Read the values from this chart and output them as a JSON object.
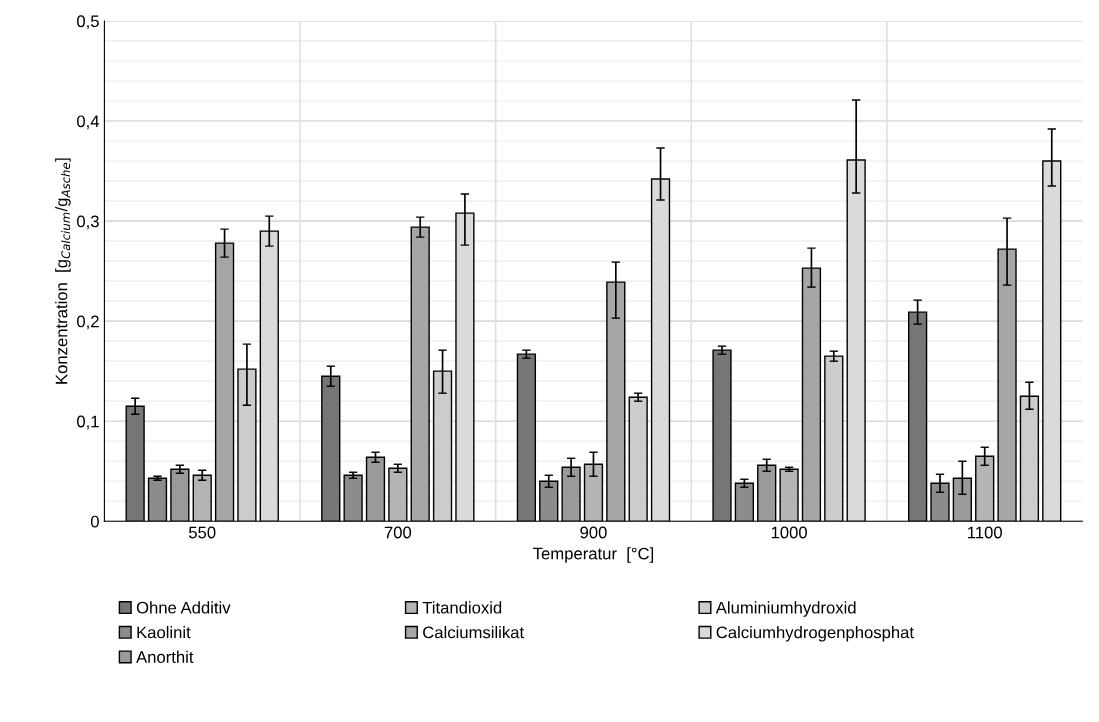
{
  "chart_data": {
    "type": "bar",
    "xlabel": "Temperatur  [°C]",
    "ylabel": "Konzentration  [g$_{Calcium}$/g$_{Asche}$]",
    "categories": [
      "550",
      "700",
      "900",
      "1000",
      "1100"
    ],
    "ylim": [
      0,
      0.5
    ],
    "yticks": [
      {
        "value": 0,
        "label": "0"
      },
      {
        "value": 0.02,
        "label": null
      },
      {
        "value": 0.04,
        "label": null
      },
      {
        "value": 0.06,
        "label": null
      },
      {
        "value": 0.08,
        "label": null
      },
      {
        "value": 0.1,
        "label": "0,1"
      },
      {
        "value": 0.12,
        "label": null
      },
      {
        "value": 0.14,
        "label": null
      },
      {
        "value": 0.16,
        "label": null
      },
      {
        "value": 0.18,
        "label": null
      },
      {
        "value": 0.2,
        "label": "0,2"
      },
      {
        "value": 0.22,
        "label": null
      },
      {
        "value": 0.24,
        "label": null
      },
      {
        "value": 0.26,
        "label": null
      },
      {
        "value": 0.28,
        "label": null
      },
      {
        "value": 0.3,
        "label": "0,3"
      },
      {
        "value": 0.32,
        "label": null
      },
      {
        "value": 0.34,
        "label": null
      },
      {
        "value": 0.36,
        "label": null
      },
      {
        "value": 0.38,
        "label": null
      },
      {
        "value": 0.4,
        "label": "0,4"
      },
      {
        "value": 0.42,
        "label": null
      },
      {
        "value": 0.44,
        "label": null
      },
      {
        "value": 0.46,
        "label": null
      },
      {
        "value": 0.48,
        "label": null
      },
      {
        "value": 0.5,
        "label": "0,5"
      }
    ],
    "grid": true,
    "legend": "bottom",
    "series": [
      {
        "name": "Ohne Additiv",
        "color": "#767676",
        "values": [
          0.115,
          0.145,
          0.167,
          0.171,
          0.209
        ],
        "errors": [
          0.008,
          0.01,
          0.004,
          0.004,
          0.012
        ]
      },
      {
        "name": "Kaolinit",
        "color": "#8c8c8c",
        "values": [
          0.043,
          0.046,
          0.04,
          0.038,
          0.038
        ],
        "errors": [
          0.002,
          0.003,
          0.006,
          0.004,
          0.009
        ]
      },
      {
        "name": "Anorthit",
        "color": "#9a9a9a",
        "values": [
          0.052,
          0.064,
          0.054,
          0.056,
          0.043
        ],
        "errors": [
          0.004,
          0.005,
          0.009,
          0.006,
          [
            0.027,
            0.06
          ]
        ]
      },
      {
        "name": "Titandioxid",
        "color": "#b4b4b4",
        "values": [
          0.046,
          0.053,
          0.057,
          0.052,
          0.065
        ],
        "errors": [
          0.005,
          0.004,
          0.012,
          0.002,
          0.009
        ]
      },
      {
        "name": "Calciumsilikat",
        "color": "#a6a6a6",
        "values": [
          0.278,
          0.294,
          0.239,
          0.253,
          0.272
        ],
        "errors": [
          0.014,
          0.01,
          [
            0.203,
            0.259
          ],
          [
            0.234,
            0.273
          ],
          [
            0.236,
            0.303
          ]
        ]
      },
      {
        "name": "Aluminiumhydroxid",
        "color": "#cccccc",
        "values": [
          0.152,
          0.15,
          0.124,
          0.165,
          0.125
        ],
        "errors": [
          [
            0.116,
            0.177
          ],
          [
            0.128,
            0.171
          ],
          0.004,
          0.005,
          [
            0.112,
            0.139
          ]
        ]
      },
      {
        "name": "Calciumhydrogenphosphat",
        "color": "#dadada",
        "values": [
          0.29,
          0.308,
          0.342,
          0.361,
          0.36
        ],
        "errors": [
          0.015,
          [
            0.276,
            0.327
          ],
          [
            0.321,
            0.373
          ],
          [
            0.328,
            0.421
          ],
          [
            0.335,
            0.392
          ]
        ]
      }
    ]
  }
}
